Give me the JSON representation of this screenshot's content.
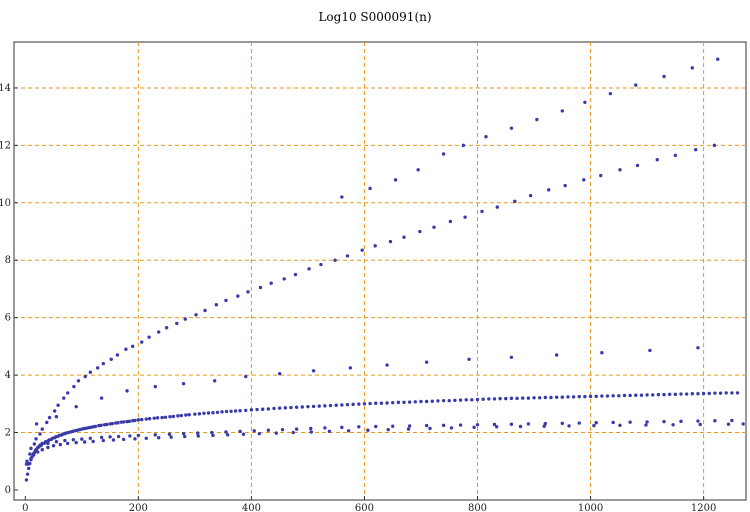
{
  "chart_data": {
    "type": "scatter",
    "title": "Log10 S000091(n)",
    "xlabel": "",
    "ylabel": "",
    "xlim": [
      -20,
      1275
    ],
    "ylim": [
      -0.35,
      15.6
    ],
    "x_ticks": [
      0,
      200,
      400,
      600,
      800,
      1000,
      1200
    ],
    "y_ticks": [
      0,
      2,
      4,
      6,
      8,
      10,
      12,
      14
    ],
    "grid": true,
    "grid_color": "#e69a1e",
    "point_color": "#3a3aa8",
    "background": "#ffffff",
    "series": [
      {
        "x": [
          2,
          6,
          10,
          14,
          18,
          22,
          26,
          30,
          36,
          42,
          48,
          54,
          60,
          66,
          72,
          80,
          88,
          96,
          104,
          112,
          120,
          130,
          140,
          150,
          160,
          170,
          180,
          190,
          200,
          214,
          228,
          242,
          256,
          270,
          284,
          300,
          316,
          332,
          348,
          364,
          380,
          400,
          420,
          440,
          460,
          480,
          500,
          520,
          540,
          560,
          580,
          600,
          620,
          640,
          660,
          680,
          700,
          720,
          740,
          760,
          780,
          800,
          820,
          840,
          860,
          880,
          900,
          920,
          940,
          960,
          980,
          1000,
          1020,
          1040,
          1060,
          1080,
          1100,
          1120,
          1140,
          1160,
          1180,
          1200,
          1220,
          1240,
          1260
        ],
        "y": [
          0.35,
          0.75,
          1.05,
          1.25,
          1.38,
          1.48,
          1.56,
          1.62,
          1.68,
          1.74,
          1.8,
          1.85,
          1.9,
          1.94,
          1.98,
          2.02,
          2.06,
          2.1,
          2.14,
          2.17,
          2.2,
          2.24,
          2.27,
          2.3,
          2.33,
          2.36,
          2.38,
          2.41,
          2.44,
          2.47,
          2.5,
          2.52,
          2.55,
          2.58,
          2.61,
          2.64,
          2.67,
          2.69,
          2.72,
          2.74,
          2.76,
          2.79,
          2.81,
          2.84,
          2.86,
          2.88,
          2.9,
          2.92,
          2.94,
          2.96,
          2.98,
          3.0,
          3.02,
          3.03,
          3.05,
          3.06,
          3.08,
          3.09,
          3.11,
          3.12,
          3.14,
          3.15,
          3.17,
          3.18,
          3.19,
          3.2,
          3.21,
          3.22,
          3.23,
          3.24,
          3.25,
          3.26,
          3.27,
          3.28,
          3.29,
          3.3,
          3.31,
          3.32,
          3.33,
          3.34,
          3.35,
          3.36,
          3.37,
          3.38,
          3.38
        ]
      },
      {
        "x": [
          4,
          8,
          12,
          16,
          20,
          24,
          28,
          34,
          40,
          46,
          52,
          58,
          64,
          70,
          76,
          84,
          92,
          100,
          108,
          116,
          124,
          134,
          144,
          154,
          164,
          174,
          184,
          194,
          206,
          220,
          234,
          248,
          262,
          276,
          290,
          308,
          324,
          340,
          356,
          372,
          390,
          410,
          430,
          450,
          470,
          490,
          510,
          530,
          550,
          570,
          590,
          610,
          630,
          650,
          670,
          690,
          710,
          730,
          750,
          770,
          790,
          810,
          830,
          850,
          870,
          890,
          910,
          930,
          950,
          970,
          990,
          1010,
          1030,
          1050,
          1070,
          1090,
          1110,
          1130,
          1150,
          1170,
          1190,
          1210,
          1230,
          1250,
          1270
        ],
        "y": [
          0.55,
          0.92,
          1.15,
          1.3,
          1.42,
          1.5,
          1.57,
          1.63,
          1.7,
          1.76,
          1.82,
          1.87,
          1.91,
          1.96,
          2.0,
          2.04,
          2.08,
          2.12,
          2.15,
          2.18,
          2.21,
          2.25,
          2.28,
          2.31,
          2.34,
          2.37,
          2.39,
          2.42,
          2.45,
          2.48,
          2.51,
          2.53,
          2.56,
          2.59,
          2.62,
          2.65,
          2.68,
          2.7,
          2.73,
          2.75,
          2.77,
          2.8,
          2.82,
          2.85,
          2.87,
          2.89,
          2.91,
          2.93,
          2.95,
          2.97,
          2.99,
          3.01,
          3.02,
          3.04,
          3.05,
          3.07,
          3.08,
          3.1,
          3.11,
          3.13,
          3.14,
          3.16,
          3.17,
          3.18,
          3.19,
          3.2,
          3.21,
          3.22,
          3.23,
          3.24,
          3.25,
          3.26,
          3.27,
          3.28,
          3.29,
          3.3,
          3.31,
          3.32,
          3.33,
          3.34,
          3.35,
          3.36,
          3.37,
          3.38,
          2.3
        ]
      },
      {
        "x": [
          5,
          10,
          15,
          22,
          30,
          40,
          50,
          62,
          75,
          90,
          105,
          120,
          138,
          156,
          174,
          194,
          214,
          236,
          258,
          282,
          306,
          332,
          358,
          386,
          414,
          444,
          474,
          506,
          538,
          572,
          606,
          642,
          678,
          716,
          754,
          794,
          834,
          876,
          918,
          962,
          1006,
          1052,
          1098,
          1146,
          1194,
          1244
        ],
        "y": [
          0.9,
          1.1,
          1.22,
          1.32,
          1.4,
          1.48,
          1.54,
          1.58,
          1.62,
          1.65,
          1.67,
          1.69,
          1.72,
          1.74,
          1.76,
          1.78,
          1.8,
          1.82,
          1.84,
          1.86,
          1.88,
          1.9,
          1.92,
          1.94,
          1.96,
          1.98,
          2.0,
          2.02,
          2.04,
          2.06,
          2.08,
          2.1,
          2.12,
          2.14,
          2.16,
          2.18,
          2.2,
          2.21,
          2.22,
          2.23,
          2.24,
          2.25,
          2.26,
          2.27,
          2.28,
          2.29
        ]
      },
      {
        "x": [
          2,
          8,
          16,
          26,
          38,
          52,
          68,
          86,
          106,
          128,
          152,
          178,
          206,
          236,
          268,
          302,
          338,
          376,
          416,
          458,
          502,
          548,
          596,
          646,
          698,
          752,
          808,
          866,
          926,
          988,
          1052,
          1118,
          1186
        ],
        "y": [
          0.9,
          1.25,
          1.6,
          1.95,
          2.35,
          2.75,
          3.2,
          3.6,
          3.95,
          4.25,
          4.55,
          4.9,
          5.15,
          5.5,
          5.8,
          6.1,
          6.45,
          6.75,
          7.05,
          7.35,
          7.7,
          8.0,
          8.35,
          8.65,
          9.0,
          9.35,
          9.7,
          10.05,
          10.45,
          10.8,
          11.15,
          11.5,
          11.85
        ]
      },
      {
        "x": [
          3,
          10,
          19,
          30,
          43,
          58,
          75,
          94,
          115,
          138,
          163,
          190,
          219,
          250,
          283,
          318,
          355,
          394,
          435,
          478,
          523,
          570,
          619,
          670,
          723,
          778,
          835,
          894,
          955,
          1018,
          1083,
          1150,
          1219
        ],
        "y": [
          1.0,
          1.45,
          1.78,
          2.12,
          2.52,
          2.95,
          3.38,
          3.8,
          4.1,
          4.4,
          4.7,
          5.0,
          5.32,
          5.65,
          5.95,
          6.25,
          6.6,
          6.9,
          7.2,
          7.5,
          7.85,
          8.15,
          8.5,
          8.8,
          9.15,
          9.5,
          9.85,
          10.25,
          10.6,
          10.95,
          11.3,
          11.65,
          12.0
        ]
      },
      {
        "x": [
          20,
          55,
          90,
          135,
          180,
          230,
          280,
          335,
          390,
          450,
          510,
          575,
          640,
          710,
          785,
          860,
          940,
          1020,
          1105,
          1190
        ],
        "y": [
          2.3,
          2.55,
          2.9,
          3.2,
          3.45,
          3.6,
          3.7,
          3.8,
          3.95,
          4.05,
          4.15,
          4.25,
          4.35,
          4.45,
          4.55,
          4.62,
          4.7,
          4.78,
          4.86,
          4.95
        ]
      },
      {
        "x": [
          560,
          610,
          655,
          695,
          740,
          775,
          815,
          860,
          905,
          950,
          990,
          1035,
          1080,
          1130,
          1180,
          1225
        ],
        "y": [
          10.2,
          10.5,
          10.8,
          11.15,
          11.7,
          12.0,
          12.3,
          12.6,
          12.9,
          13.2,
          13.5,
          13.8,
          14.1,
          14.4,
          14.7,
          15.0
        ]
      },
      {
        "x": [
          28,
          40,
          55,
          70,
          85,
          100,
          115,
          135,
          150,
          165,
          185,
          200,
          230,
          255,
          280,
          305,
          330,
          355,
          380,
          405,
          430,
          455,
          480,
          505,
          530,
          560,
          590,
          620,
          650,
          680,
          710,
          740,
          770,
          800,
          830,
          860,
          890,
          920,
          950,
          980,
          1010,
          1040,
          1070,
          1100,
          1130,
          1160,
          1190,
          1220,
          1250
        ],
        "y": [
          1.55,
          1.62,
          1.68,
          1.72,
          1.75,
          1.77,
          1.8,
          1.83,
          1.85,
          1.86,
          1.88,
          1.9,
          1.92,
          1.94,
          1.96,
          1.98,
          2.0,
          2.02,
          2.04,
          2.06,
          2.08,
          2.1,
          2.12,
          2.14,
          2.16,
          2.18,
          2.2,
          2.21,
          2.22,
          2.23,
          2.24,
          2.25,
          2.26,
          2.27,
          2.28,
          2.29,
          2.3,
          2.31,
          2.32,
          2.33,
          2.34,
          2.35,
          2.36,
          2.37,
          2.38,
          2.39,
          2.4,
          2.41,
          2.42
        ]
      }
    ]
  }
}
